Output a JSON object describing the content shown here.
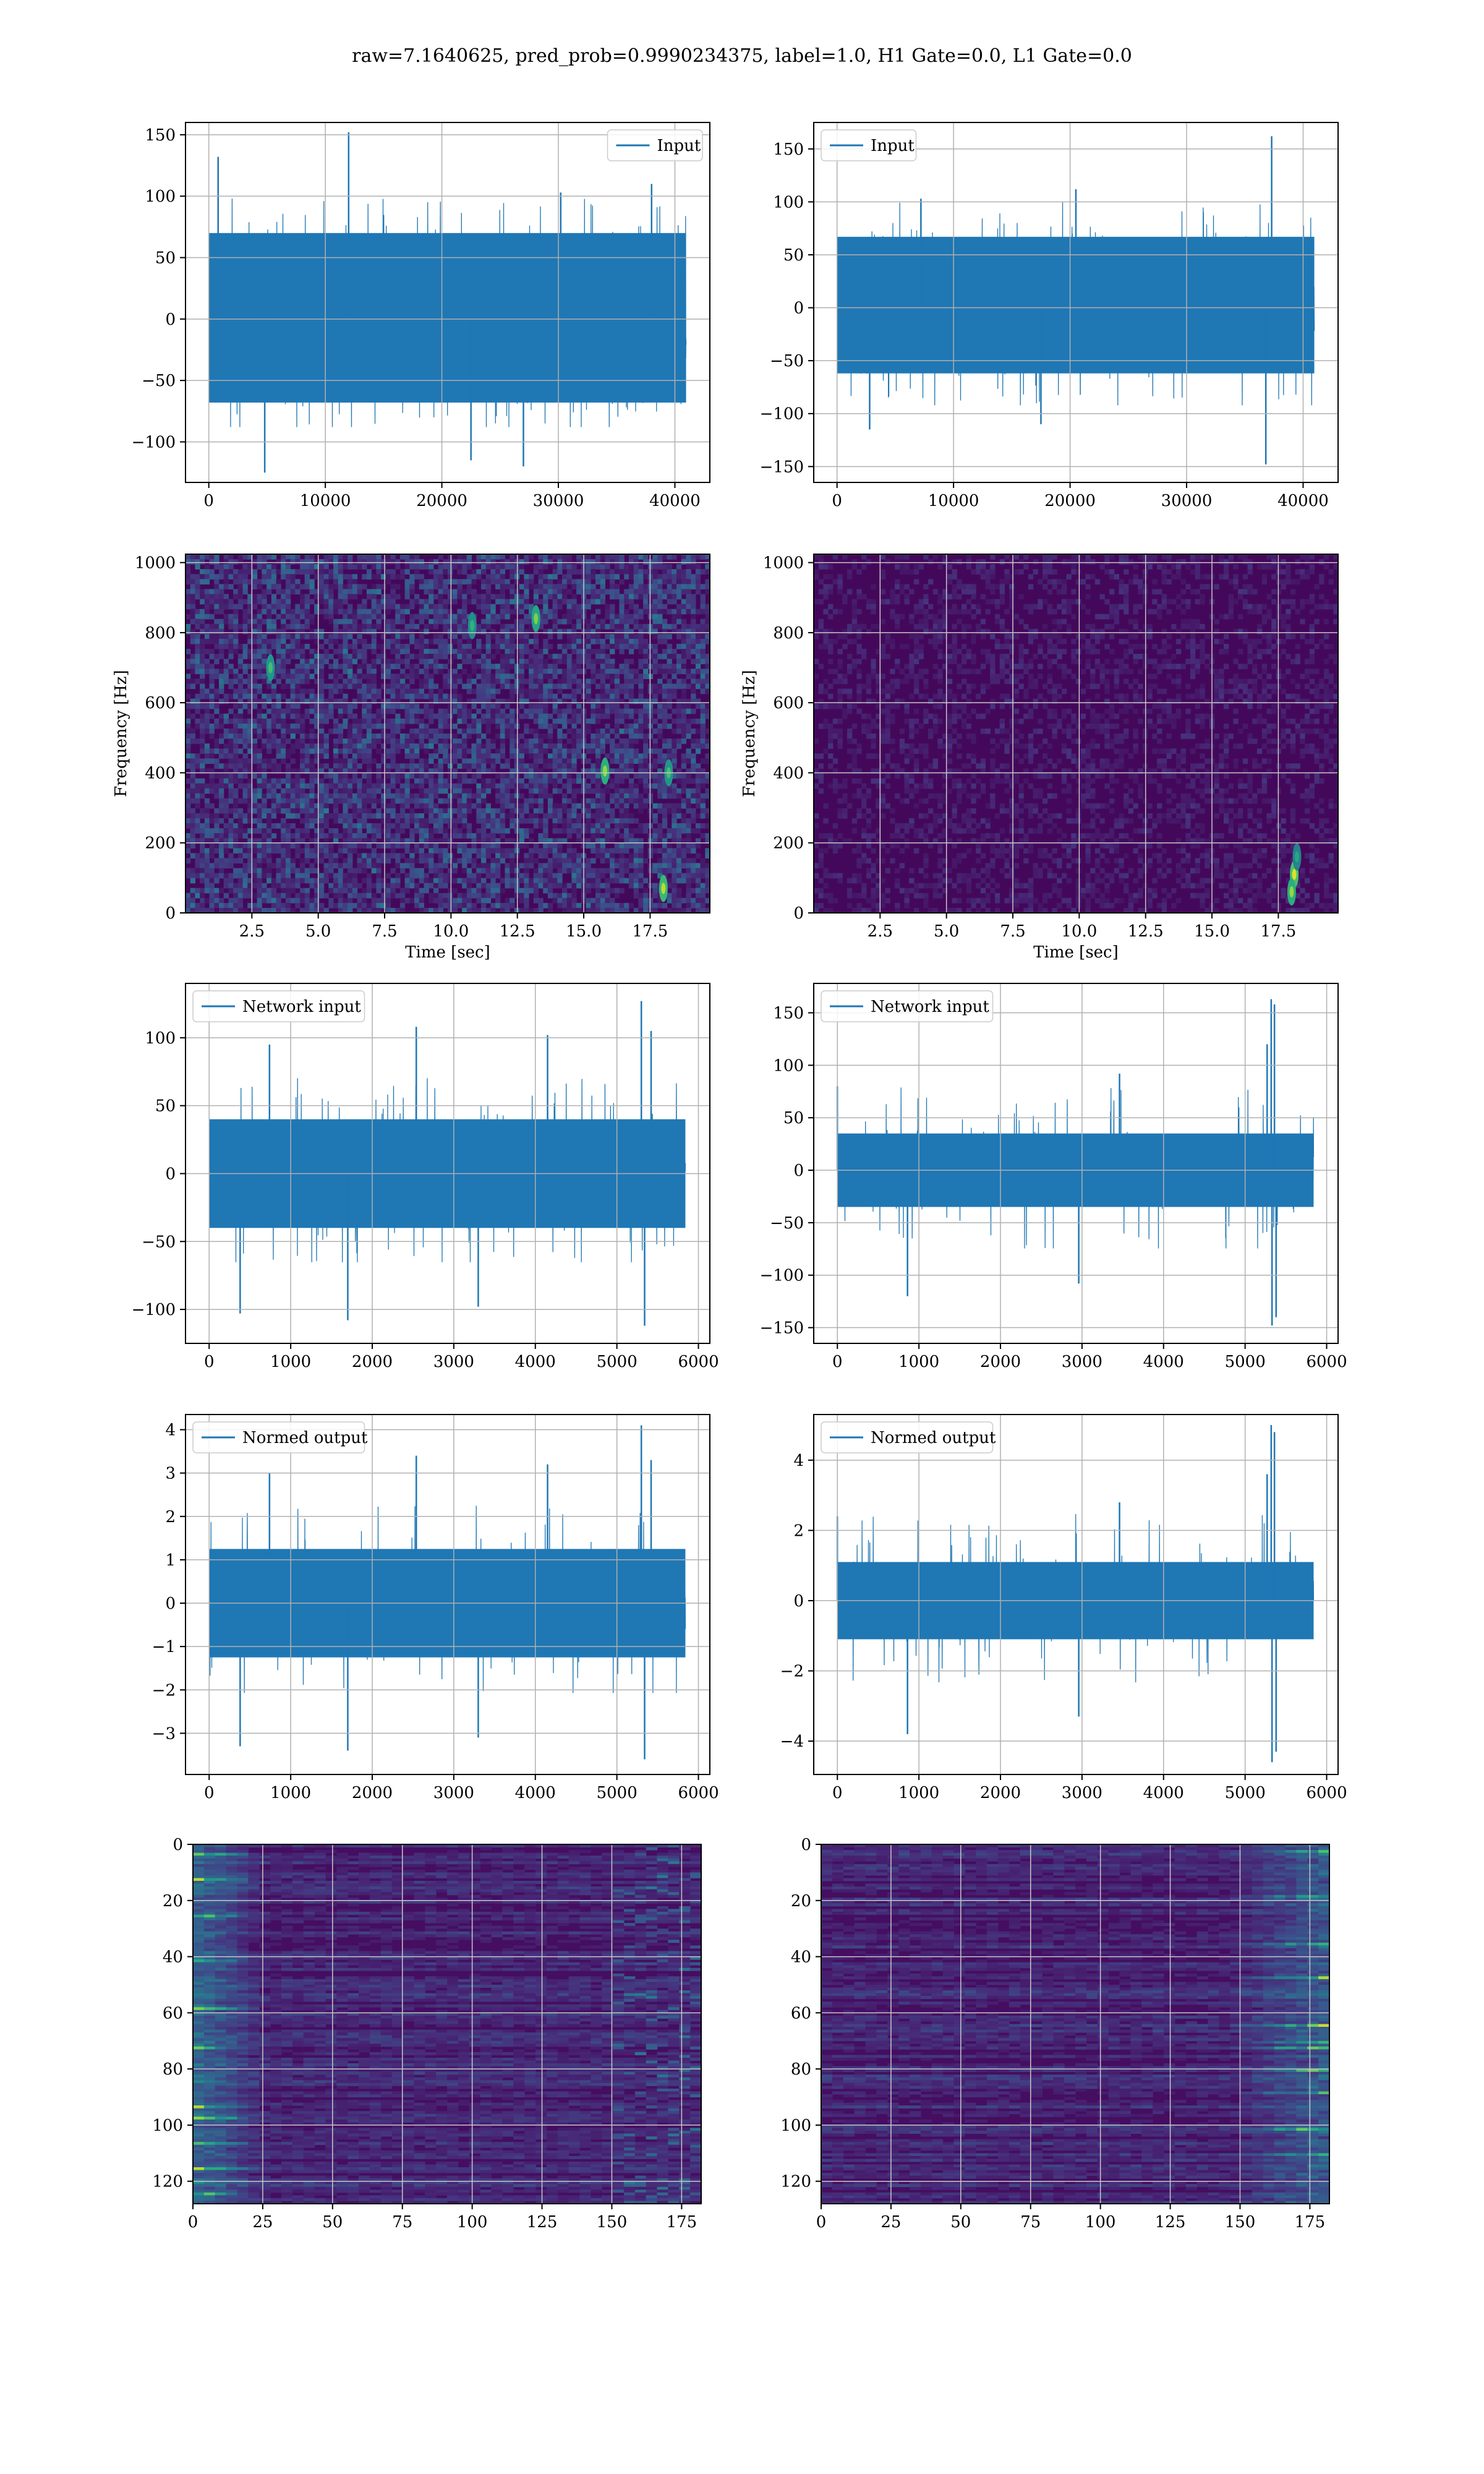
{
  "figure": {
    "suptitle": "raw=7.1640625, pred_prob=0.9990234375, label=1.0, H1 Gate=0.0, L1 Gate=0.0"
  },
  "chart_data": [
    {
      "id": "input-h1",
      "type": "line",
      "title": "",
      "legend": {
        "entries": [
          "Input"
        ],
        "position": "upper right"
      },
      "color": "#1f77b4",
      "xlabel": "",
      "ylabel": "",
      "xlim": [
        -2000,
        43000
      ],
      "ylim": [
        -133,
        160
      ],
      "xticks": [
        0,
        10000,
        20000,
        30000,
        40000
      ],
      "xtick_labels": [
        "0",
        "10000",
        "20000",
        "30000",
        "40000"
      ],
      "yticks": [
        150,
        100,
        50,
        0,
        -50,
        -100
      ],
      "ytick_labels": [
        "150",
        "100",
        "50",
        "0",
        "−50",
        "−100"
      ],
      "grid": true,
      "x_range": [
        0,
        40960
      ],
      "band": [
        -68,
        70
      ],
      "extreme_high": 152,
      "extreme_low": -125,
      "spikes": [
        [
          12000,
          152
        ],
        [
          800,
          132
        ],
        [
          30200,
          103
        ],
        [
          38000,
          110
        ]
      ],
      "dips": [
        [
          4800,
          -125
        ],
        [
          27000,
          -120
        ],
        [
          22500,
          -115
        ]
      ]
    },
    {
      "id": "input-l1",
      "type": "line",
      "title": "",
      "legend": {
        "entries": [
          "Input"
        ],
        "position": "upper left"
      },
      "color": "#1f77b4",
      "xlabel": "",
      "ylabel": "",
      "xlim": [
        -2000,
        43000
      ],
      "ylim": [
        -165,
        175
      ],
      "xticks": [
        0,
        10000,
        20000,
        30000,
        40000
      ],
      "xtick_labels": [
        "0",
        "10000",
        "20000",
        "30000",
        "40000"
      ],
      "yticks": [
        150,
        100,
        50,
        0,
        -50,
        -100,
        -150
      ],
      "ytick_labels": [
        "150",
        "100",
        "50",
        "0",
        "−50",
        "−100",
        "−150"
      ],
      "grid": true,
      "x_range": [
        0,
        40960
      ],
      "band": [
        -62,
        67
      ],
      "extreme_high": 162,
      "extreme_low": -148,
      "spikes": [
        [
          37300,
          162
        ],
        [
          20500,
          112
        ],
        [
          7200,
          103
        ]
      ],
      "dips": [
        [
          36800,
          -148
        ],
        [
          2800,
          -115
        ],
        [
          17500,
          -110
        ]
      ]
    },
    {
      "id": "spectrogram-h1",
      "type": "heatmap",
      "title": "",
      "xlabel": "Time [sec]",
      "ylabel": "Frequency [Hz]",
      "xlim": [
        0,
        19.75
      ],
      "ylim": [
        0,
        1024
      ],
      "xticks": [
        2.5,
        5.0,
        7.5,
        10.0,
        12.5,
        15.0,
        17.5
      ],
      "xtick_labels": [
        "2.5",
        "5.0",
        "7.5",
        "10.0",
        "12.5",
        "15.0",
        "17.5"
      ],
      "yticks": [
        0,
        200,
        400,
        600,
        800,
        1000
      ],
      "ytick_labels": [
        "0",
        "200",
        "400",
        "600",
        "800",
        "1000"
      ],
      "grid": true,
      "colormap": "viridis",
      "background_level": 0.3,
      "hot_spots": [
        [
          18.0,
          70,
          0.9
        ],
        [
          15.8,
          405,
          0.85
        ],
        [
          13.2,
          840,
          0.8
        ],
        [
          3.2,
          700,
          0.7
        ],
        [
          10.8,
          820,
          0.65
        ],
        [
          18.2,
          400,
          0.7
        ]
      ]
    },
    {
      "id": "spectrogram-l1",
      "type": "heatmap",
      "title": "",
      "xlabel": "Time [sec]",
      "ylabel": "Frequency [Hz]",
      "xlim": [
        0,
        19.75
      ],
      "ylim": [
        0,
        1024
      ],
      "xticks": [
        2.5,
        5.0,
        7.5,
        10.0,
        12.5,
        15.0,
        17.5
      ],
      "xtick_labels": [
        "2.5",
        "5.0",
        "7.5",
        "10.0",
        "12.5",
        "15.0",
        "17.5"
      ],
      "yticks": [
        0,
        200,
        400,
        600,
        800,
        1000
      ],
      "ytick_labels": [
        "0",
        "200",
        "400",
        "600",
        "800",
        "1000"
      ],
      "grid": true,
      "colormap": "viridis",
      "background_level": 0.12,
      "hot_spots": [
        [
          18.1,
          110,
          0.95
        ],
        [
          18.0,
          60,
          0.85
        ],
        [
          18.2,
          160,
          0.6
        ]
      ]
    },
    {
      "id": "network-input-h1",
      "type": "line",
      "title": "",
      "legend": {
        "entries": [
          "Network input"
        ],
        "position": "upper left"
      },
      "color": "#1f77b4",
      "xlabel": "",
      "ylabel": "",
      "xlim": [
        -290,
        6140
      ],
      "ylim": [
        -125,
        140
      ],
      "xticks": [
        0,
        1000,
        2000,
        3000,
        4000,
        5000,
        6000
      ],
      "xtick_labels": [
        "0",
        "1000",
        "2000",
        "3000",
        "4000",
        "5000",
        "6000"
      ],
      "yticks": [
        100,
        50,
        0,
        -50,
        -100
      ],
      "ytick_labels": [
        "100",
        "50",
        "0",
        "−50",
        "−100"
      ],
      "grid": true,
      "x_range": [
        0,
        5840
      ],
      "band": [
        -40,
        40
      ],
      "extreme_high": 127,
      "extreme_low": -112,
      "spikes": [
        [
          5300,
          127
        ],
        [
          5420,
          105
        ],
        [
          2540,
          108
        ],
        [
          4150,
          102
        ],
        [
          740,
          95
        ]
      ],
      "dips": [
        [
          1700,
          -108
        ],
        [
          5340,
          -112
        ],
        [
          380,
          -103
        ],
        [
          3300,
          -98
        ]
      ]
    },
    {
      "id": "network-input-l1",
      "type": "line",
      "title": "",
      "legend": {
        "entries": [
          "Network input"
        ],
        "position": "upper left"
      },
      "color": "#1f77b4",
      "xlabel": "",
      "ylabel": "",
      "xlim": [
        -290,
        6140
      ],
      "ylim": [
        -165,
        178
      ],
      "xticks": [
        0,
        1000,
        2000,
        3000,
        4000,
        5000,
        6000
      ],
      "xtick_labels": [
        "0",
        "1000",
        "2000",
        "3000",
        "4000",
        "5000",
        "6000"
      ],
      "yticks": [
        150,
        100,
        50,
        0,
        -50,
        -100,
        -150
      ],
      "ytick_labels": [
        "150",
        "100",
        "50",
        "0",
        "−50",
        "−100",
        "−150"
      ],
      "grid": true,
      "x_range": [
        0,
        5840
      ],
      "band": [
        -35,
        35
      ],
      "extreme_high": 163,
      "extreme_low": -148,
      "spikes": [
        [
          5320,
          163
        ],
        [
          5360,
          158
        ],
        [
          5270,
          120
        ],
        [
          3460,
          92
        ],
        [
          0,
          80
        ]
      ],
      "dips": [
        [
          5330,
          -148
        ],
        [
          5380,
          -140
        ],
        [
          860,
          -120
        ],
        [
          2960,
          -108
        ]
      ]
    },
    {
      "id": "normed-output-h1",
      "type": "line",
      "title": "",
      "legend": {
        "entries": [
          "Normed output"
        ],
        "position": "upper left"
      },
      "color": "#1f77b4",
      "xlabel": "",
      "ylabel": "",
      "xlim": [
        -290,
        6140
      ],
      "ylim": [
        -3.95,
        4.35
      ],
      "xticks": [
        0,
        1000,
        2000,
        3000,
        4000,
        5000,
        6000
      ],
      "xtick_labels": [
        "0",
        "1000",
        "2000",
        "3000",
        "4000",
        "5000",
        "6000"
      ],
      "yticks": [
        4,
        3,
        2,
        1,
        0,
        -1,
        -2,
        -3
      ],
      "ytick_labels": [
        "4",
        "3",
        "2",
        "1",
        "0",
        "−1",
        "−2",
        "−3"
      ],
      "grid": true,
      "x_range": [
        0,
        5840
      ],
      "band": [
        -1.25,
        1.25
      ],
      "extreme_high": 4.1,
      "extreme_low": -3.6,
      "spikes": [
        [
          5300,
          4.1
        ],
        [
          5420,
          3.3
        ],
        [
          2540,
          3.4
        ],
        [
          4150,
          3.2
        ],
        [
          740,
          3.0
        ]
      ],
      "dips": [
        [
          1700,
          -3.4
        ],
        [
          5340,
          -3.6
        ],
        [
          380,
          -3.3
        ],
        [
          3300,
          -3.1
        ]
      ]
    },
    {
      "id": "normed-output-l1",
      "type": "line",
      "title": "",
      "legend": {
        "entries": [
          "Normed output"
        ],
        "position": "upper left"
      },
      "color": "#1f77b4",
      "xlabel": "",
      "ylabel": "",
      "xlim": [
        -290,
        6140
      ],
      "ylim": [
        -4.95,
        5.3
      ],
      "xticks": [
        0,
        1000,
        2000,
        3000,
        4000,
        5000,
        6000
      ],
      "xtick_labels": [
        "0",
        "1000",
        "2000",
        "3000",
        "4000",
        "5000",
        "6000"
      ],
      "yticks": [
        4,
        2,
        0,
        -2,
        -4
      ],
      "ytick_labels": [
        "4",
        "2",
        "0",
        "−2",
        "−4"
      ],
      "grid": true,
      "x_range": [
        0,
        5840
      ],
      "band": [
        -1.1,
        1.1
      ],
      "extreme_high": 5.0,
      "extreme_low": -4.6,
      "spikes": [
        [
          5320,
          5.0
        ],
        [
          5360,
          4.8
        ],
        [
          5270,
          3.6
        ],
        [
          3460,
          2.8
        ],
        [
          0,
          2.4
        ]
      ],
      "dips": [
        [
          5330,
          -4.6
        ],
        [
          5380,
          -4.3
        ],
        [
          860,
          -3.8
        ],
        [
          2960,
          -3.3
        ]
      ]
    },
    {
      "id": "feature-map-h1",
      "type": "heatmap",
      "title": "",
      "xlabel": "",
      "ylabel": "",
      "xlim": [
        0,
        182
      ],
      "ylim": [
        128,
        0
      ],
      "xticks": [
        0,
        25,
        50,
        75,
        100,
        125,
        150,
        175
      ],
      "xtick_labels": [
        "0",
        "25",
        "50",
        "75",
        "100",
        "125",
        "150",
        "175"
      ],
      "yticks": [
        0,
        20,
        40,
        60,
        80,
        100,
        120
      ],
      "ytick_labels": [
        "0",
        "20",
        "40",
        "60",
        "80",
        "100",
        "120"
      ],
      "grid": true,
      "colormap": "viridis",
      "active_region": "left",
      "active_extent": 25,
      "hot_rows": [
        3,
        12,
        25,
        41,
        58,
        72,
        93,
        97,
        106,
        115,
        124
      ]
    },
    {
      "id": "feature-map-l1",
      "type": "heatmap",
      "title": "",
      "xlabel": "",
      "ylabel": "",
      "xlim": [
        0,
        182
      ],
      "ylim": [
        128,
        0
      ],
      "xticks": [
        0,
        25,
        50,
        75,
        100,
        125,
        150,
        175
      ],
      "xtick_labels": [
        "0",
        "25",
        "50",
        "75",
        "100",
        "125",
        "150",
        "175"
      ],
      "yticks": [
        0,
        20,
        40,
        60,
        80,
        100,
        120
      ],
      "ytick_labels": [
        "0",
        "20",
        "40",
        "60",
        "80",
        "100",
        "120"
      ],
      "grid": true,
      "colormap": "viridis",
      "active_region": "right",
      "active_extent": 35,
      "hot_rows": [
        2,
        18,
        35,
        47,
        64,
        70,
        72,
        80,
        88,
        101,
        110
      ]
    }
  ]
}
